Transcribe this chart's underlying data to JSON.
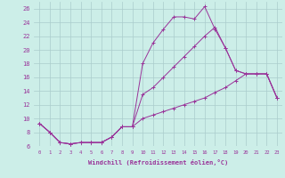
{
  "xlabel": "Windchill (Refroidissement éolien,°C)",
  "bg_color": "#cceee8",
  "grid_color": "#aacccc",
  "line_color": "#993399",
  "xlim": [
    -0.5,
    23.5
  ],
  "ylim": [
    6,
    27
  ],
  "yticks": [
    6,
    8,
    10,
    12,
    14,
    16,
    18,
    20,
    22,
    24,
    26
  ],
  "xticks": [
    0,
    1,
    2,
    3,
    4,
    5,
    6,
    7,
    8,
    9,
    10,
    11,
    12,
    13,
    14,
    15,
    16,
    17,
    18,
    19,
    20,
    21,
    22,
    23
  ],
  "line1_x": [
    0,
    1,
    2,
    3,
    4,
    5,
    6,
    7,
    8,
    9,
    10,
    11,
    12,
    13,
    14,
    15,
    16,
    17,
    18,
    19,
    20,
    21,
    22,
    23
  ],
  "line1_y": [
    9.3,
    8.0,
    6.5,
    6.3,
    6.5,
    6.5,
    6.5,
    7.3,
    8.8,
    8.8,
    18.0,
    21.0,
    23.0,
    24.8,
    24.8,
    24.5,
    26.3,
    23.0,
    20.3,
    17.0,
    16.5,
    16.5,
    16.5,
    13.0
  ],
  "line2_x": [
    0,
    1,
    2,
    3,
    4,
    5,
    6,
    7,
    8,
    9,
    10,
    11,
    12,
    13,
    14,
    15,
    16,
    17,
    18,
    19,
    20,
    21,
    22,
    23
  ],
  "line2_y": [
    9.3,
    8.0,
    6.5,
    6.3,
    6.5,
    6.5,
    6.5,
    7.3,
    8.8,
    8.8,
    13.5,
    14.5,
    16.0,
    17.5,
    19.0,
    20.5,
    22.0,
    23.3,
    20.3,
    17.0,
    16.5,
    16.5,
    16.5,
    13.0
  ],
  "line3_x": [
    0,
    1,
    2,
    3,
    4,
    5,
    6,
    7,
    8,
    9,
    10,
    11,
    12,
    13,
    14,
    15,
    16,
    17,
    18,
    19,
    20,
    21,
    22,
    23
  ],
  "line3_y": [
    9.3,
    8.0,
    6.5,
    6.3,
    6.5,
    6.5,
    6.5,
    7.3,
    8.8,
    8.8,
    10.0,
    10.5,
    11.0,
    11.5,
    12.0,
    12.5,
    13.0,
    13.8,
    14.5,
    15.5,
    16.5,
    16.5,
    16.5,
    13.0
  ]
}
